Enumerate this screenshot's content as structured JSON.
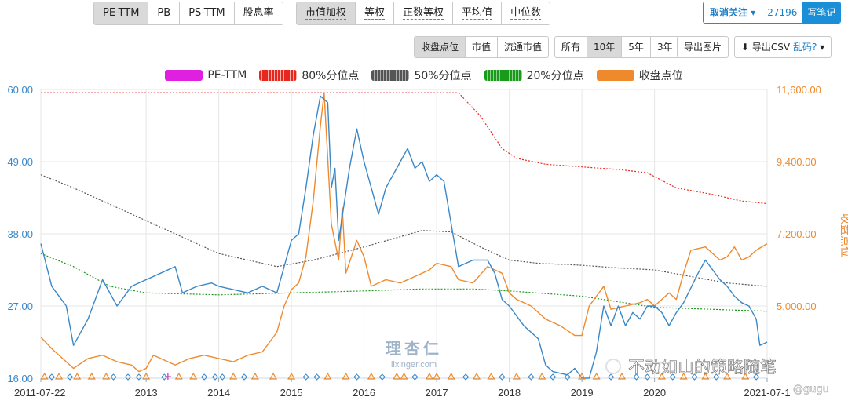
{
  "toolbar": {
    "metrics": [
      "PE-TTM",
      "PB",
      "PS-TTM",
      "股息率"
    ],
    "weightings": [
      "市值加权",
      "等权",
      "正数等权",
      "平均值",
      "中位数"
    ],
    "follow": {
      "label": "取消关注",
      "count": "27196",
      "note": "写笔记"
    },
    "value_modes": [
      "收盘点位",
      "市值",
      "流通市值"
    ],
    "periods": [
      "所有",
      "10年",
      "5年",
      "3年"
    ],
    "export_image": "导出图片",
    "export_csv": "导出CSV",
    "garbled": "乱码?"
  },
  "colors": {
    "pe": "#3a87c8",
    "p80": "#e8281e",
    "p50": "#555555",
    "p20": "#1a9a1a",
    "close": "#ef8a2c",
    "pe_legend": "#e020e0"
  },
  "watermark": {
    "logo": "理杏仁",
    "url": "lixinger.com",
    "overlay": "不动如山的策略随笔",
    "overlay_tag": "@gugu"
  },
  "chart_data": {
    "type": "line",
    "legend": [
      "PE-TTM",
      "80%分位点",
      "50%分位点",
      "20%分位点",
      "收盘点位"
    ],
    "left_axis": {
      "ticks": [
        "60.00",
        "49.00",
        "38.00",
        "27.00",
        "16.00"
      ],
      "ylim": [
        16,
        60
      ]
    },
    "right_axis": {
      "label": "收盘点位",
      "ticks": [
        "11,600.00",
        "9,400.00",
        "7,200.00",
        "5,000.00"
      ],
      "ylim": [
        2800,
        11600
      ]
    },
    "x_ticks": [
      "2011-07-22",
      "2013",
      "2014",
      "2015",
      "2016",
      "2017",
      "2018",
      "2019",
      "2020",
      "2021-07-1"
    ],
    "xlim": [
      2011.55,
      2021.55
    ],
    "series": [
      {
        "name": "PE-TTM",
        "axis": "left",
        "points": [
          [
            2011.55,
            36.5
          ],
          [
            2011.7,
            30
          ],
          [
            2011.9,
            27
          ],
          [
            2012.0,
            21
          ],
          [
            2012.2,
            25
          ],
          [
            2012.4,
            31
          ],
          [
            2012.6,
            27
          ],
          [
            2012.8,
            30
          ],
          [
            2013.0,
            31
          ],
          [
            2013.2,
            32
          ],
          [
            2013.4,
            33
          ],
          [
            2013.5,
            29
          ],
          [
            2013.7,
            30
          ],
          [
            2013.9,
            30.5
          ],
          [
            2014.0,
            30
          ],
          [
            2014.2,
            29.5
          ],
          [
            2014.4,
            29
          ],
          [
            2014.6,
            30
          ],
          [
            2014.8,
            29
          ],
          [
            2014.9,
            33
          ],
          [
            2015.0,
            37
          ],
          [
            2015.1,
            38
          ],
          [
            2015.2,
            45
          ],
          [
            2015.3,
            53
          ],
          [
            2015.4,
            59
          ],
          [
            2015.5,
            58
          ],
          [
            2015.55,
            45
          ],
          [
            2015.6,
            48
          ],
          [
            2015.65,
            37
          ],
          [
            2015.8,
            48
          ],
          [
            2015.9,
            54
          ],
          [
            2016.0,
            49
          ],
          [
            2016.1,
            45
          ],
          [
            2016.2,
            41
          ],
          [
            2016.3,
            45
          ],
          [
            2016.5,
            49
          ],
          [
            2016.6,
            51
          ],
          [
            2016.7,
            48
          ],
          [
            2016.8,
            49
          ],
          [
            2016.9,
            46
          ],
          [
            2017.0,
            47
          ],
          [
            2017.1,
            46
          ],
          [
            2017.3,
            33
          ],
          [
            2017.5,
            34
          ],
          [
            2017.7,
            34
          ],
          [
            2017.8,
            32
          ],
          [
            2017.9,
            28
          ],
          [
            2018.0,
            27
          ],
          [
            2018.2,
            24
          ],
          [
            2018.4,
            22
          ],
          [
            2018.5,
            18
          ],
          [
            2018.6,
            17
          ],
          [
            2018.8,
            16.5
          ],
          [
            2018.9,
            17.5
          ],
          [
            2019.0,
            16
          ],
          [
            2019.1,
            16
          ],
          [
            2019.2,
            20
          ],
          [
            2019.3,
            27
          ],
          [
            2019.4,
            24
          ],
          [
            2019.5,
            27
          ],
          [
            2019.6,
            24
          ],
          [
            2019.7,
            26
          ],
          [
            2019.8,
            25
          ],
          [
            2019.9,
            27
          ],
          [
            2020.0,
            27
          ],
          [
            2020.1,
            26
          ],
          [
            2020.2,
            24
          ],
          [
            2020.3,
            26
          ],
          [
            2020.4,
            27.5
          ],
          [
            2020.6,
            32
          ],
          [
            2020.7,
            34
          ],
          [
            2020.9,
            31
          ],
          [
            2021.0,
            30
          ],
          [
            2021.1,
            28.5
          ],
          [
            2021.2,
            27.5
          ],
          [
            2021.3,
            27
          ],
          [
            2021.4,
            25
          ],
          [
            2021.45,
            21
          ],
          [
            2021.55,
            21.5
          ]
        ]
      },
      {
        "name": "80%分位点",
        "axis": "left",
        "points": [
          [
            2011.55,
            59.5
          ],
          [
            2017.3,
            59.5
          ],
          [
            2017.6,
            56
          ],
          [
            2017.9,
            51
          ],
          [
            2018.1,
            49.5
          ],
          [
            2018.5,
            48.6
          ],
          [
            2019.0,
            48.2
          ],
          [
            2019.5,
            47.8
          ],
          [
            2019.9,
            47.3
          ],
          [
            2020.3,
            45
          ],
          [
            2020.8,
            44
          ],
          [
            2021.2,
            43
          ],
          [
            2021.55,
            42.6
          ]
        ]
      },
      {
        "name": "50%分位点",
        "axis": "left",
        "points": [
          [
            2011.55,
            47
          ],
          [
            2012.0,
            45
          ],
          [
            2012.6,
            42
          ],
          [
            2013.2,
            39
          ],
          [
            2014.0,
            35
          ],
          [
            2014.8,
            33
          ],
          [
            2015.3,
            34
          ],
          [
            2016.0,
            36
          ],
          [
            2016.8,
            38.5
          ],
          [
            2017.2,
            38.3
          ],
          [
            2017.6,
            36
          ],
          [
            2018.0,
            34
          ],
          [
            2018.4,
            33.5
          ],
          [
            2019.0,
            33.2
          ],
          [
            2019.5,
            32.8
          ],
          [
            2020.0,
            32.5
          ],
          [
            2020.5,
            31.5
          ],
          [
            2021.0,
            30.5
          ],
          [
            2021.55,
            30
          ]
        ]
      },
      {
        "name": "20%分位点",
        "axis": "left",
        "points": [
          [
            2011.55,
            35
          ],
          [
            2012.0,
            33
          ],
          [
            2012.5,
            30
          ],
          [
            2013.0,
            29
          ],
          [
            2014.0,
            28.7
          ],
          [
            2015.0,
            29
          ],
          [
            2016.0,
            29.3
          ],
          [
            2016.8,
            29.6
          ],
          [
            2017.5,
            29.6
          ],
          [
            2018.0,
            29.3
          ],
          [
            2019.0,
            28.5
          ],
          [
            2020.0,
            26.8
          ],
          [
            2021.55,
            26.2
          ]
        ]
      },
      {
        "name": "收盘点位",
        "axis": "right",
        "points": [
          [
            2011.55,
            4050
          ],
          [
            2011.7,
            3700
          ],
          [
            2011.9,
            3300
          ],
          [
            2012.0,
            3100
          ],
          [
            2012.2,
            3400
          ],
          [
            2012.4,
            3500
          ],
          [
            2012.6,
            3300
          ],
          [
            2012.8,
            3200
          ],
          [
            2012.9,
            3000
          ],
          [
            2013.0,
            3100
          ],
          [
            2013.1,
            3500
          ],
          [
            2013.4,
            3200
          ],
          [
            2013.6,
            3400
          ],
          [
            2013.8,
            3500
          ],
          [
            2014.0,
            3400
          ],
          [
            2014.2,
            3300
          ],
          [
            2014.4,
            3500
          ],
          [
            2014.6,
            3600
          ],
          [
            2014.8,
            4200
          ],
          [
            2014.9,
            5000
          ],
          [
            2015.0,
            5500
          ],
          [
            2015.1,
            5700
          ],
          [
            2015.2,
            6500
          ],
          [
            2015.3,
            8200
          ],
          [
            2015.4,
            10500
          ],
          [
            2015.45,
            11500
          ],
          [
            2015.55,
            7500
          ],
          [
            2015.65,
            6400
          ],
          [
            2015.7,
            8000
          ],
          [
            2015.75,
            6000
          ],
          [
            2015.9,
            7000
          ],
          [
            2016.0,
            6500
          ],
          [
            2016.1,
            5600
          ],
          [
            2016.3,
            5800
          ],
          [
            2016.5,
            5700
          ],
          [
            2016.7,
            5900
          ],
          [
            2016.9,
            6100
          ],
          [
            2017.0,
            6300
          ],
          [
            2017.2,
            6200
          ],
          [
            2017.3,
            5800
          ],
          [
            2017.5,
            5700
          ],
          [
            2017.7,
            6200
          ],
          [
            2017.9,
            6000
          ],
          [
            2018.0,
            5400
          ],
          [
            2018.1,
            5200
          ],
          [
            2018.3,
            5000
          ],
          [
            2018.5,
            4600
          ],
          [
            2018.7,
            4400
          ],
          [
            2018.9,
            4100
          ],
          [
            2019.0,
            4100
          ],
          [
            2019.1,
            5000
          ],
          [
            2019.3,
            5600
          ],
          [
            2019.4,
            4900
          ],
          [
            2019.6,
            5000
          ],
          [
            2019.8,
            5100
          ],
          [
            2019.9,
            5200
          ],
          [
            2020.0,
            5000
          ],
          [
            2020.2,
            5400
          ],
          [
            2020.3,
            5200
          ],
          [
            2020.4,
            6000
          ],
          [
            2020.5,
            6700
          ],
          [
            2020.7,
            6800
          ],
          [
            2020.9,
            6400
          ],
          [
            2021.0,
            6500
          ],
          [
            2021.1,
            6800
          ],
          [
            2021.2,
            6400
          ],
          [
            2021.3,
            6500
          ],
          [
            2021.4,
            6700
          ],
          [
            2021.55,
            6900
          ]
        ]
      }
    ],
    "markers": {
      "triangle_color": "#ef8a2c",
      "diamond_color": "#3a87c8",
      "plus_color": "#c040c0"
    }
  }
}
